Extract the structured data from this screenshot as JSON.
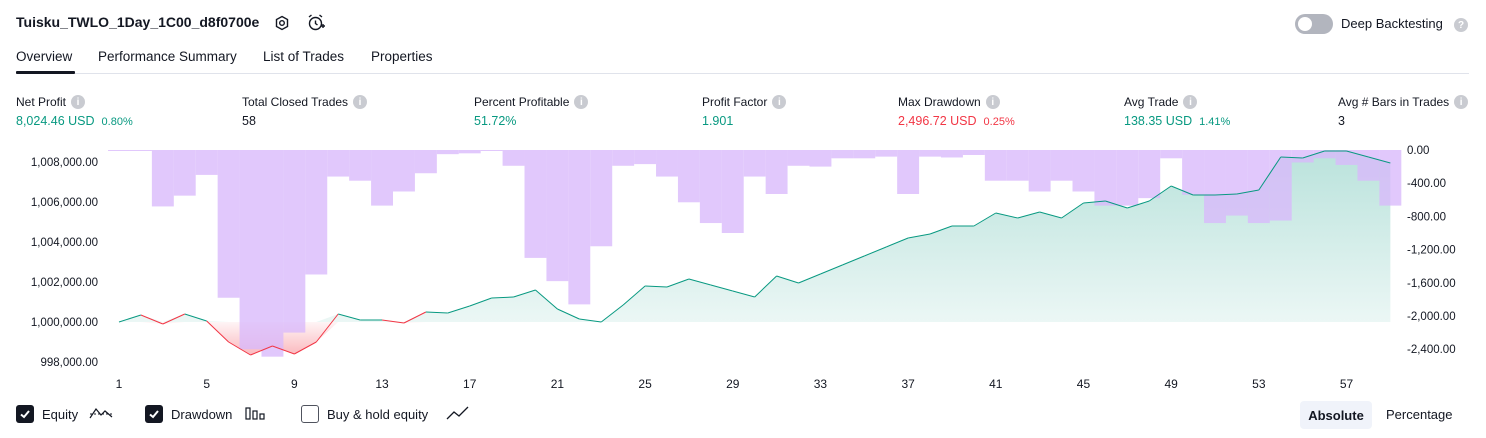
{
  "header": {
    "title": "Tuisku_TWLO_1Day_1C00_d8f0700e",
    "deep_backtesting_label": "Deep Backtesting",
    "deep_backtesting_enabled": false
  },
  "tabs": [
    {
      "label": "Overview",
      "active": true
    },
    {
      "label": "Performance Summary",
      "active": false
    },
    {
      "label": "List of Trades",
      "active": false
    },
    {
      "label": "Properties",
      "active": false
    }
  ],
  "metrics": {
    "net_profit": {
      "label": "Net Profit",
      "value": "8,024.46 USD",
      "pct": "0.80%"
    },
    "total_closed_trades": {
      "label": "Total Closed Trades",
      "value": "58"
    },
    "percent_profitable": {
      "label": "Percent Profitable",
      "value": "51.72%"
    },
    "profit_factor": {
      "label": "Profit Factor",
      "value": "1.901"
    },
    "max_drawdown": {
      "label": "Max Drawdown",
      "value": "2,496.72 USD",
      "pct": "0.25%"
    },
    "avg_trade": {
      "label": "Avg Trade",
      "value": "138.35 USD",
      "pct": "1.41%"
    },
    "avg_bars": {
      "label": "Avg # Bars in Trades",
      "value": "3"
    }
  },
  "legend": {
    "equity": {
      "label": "Equity",
      "checked": true
    },
    "drawdown": {
      "label": "Drawdown",
      "checked": true
    },
    "buy_hold": {
      "label": "Buy & hold equity",
      "checked": false
    }
  },
  "view_mode": {
    "absolute_label": "Absolute",
    "percentage_label": "Percentage",
    "selected": "Absolute"
  },
  "colors": {
    "green": "#089981",
    "red": "#f23645",
    "drawdown_bar": "#e1c4fc",
    "equity_fill": "#d6f0e9"
  },
  "chart_data": {
    "type": "area",
    "x_ticks": [
      "1",
      "5",
      "9",
      "13",
      "17",
      "21",
      "25",
      "29",
      "33",
      "37",
      "41",
      "45",
      "49",
      "53",
      "57"
    ],
    "y_left_ticks": [
      "1,008,000.00",
      "1,006,000.00",
      "1,004,000.00",
      "1,002,000.00",
      "1,000,000.00",
      "998,000.00"
    ],
    "y_right_ticks": [
      "0.00",
      "-400.00",
      "-800.00",
      "-1,200.00",
      "-1,600.00",
      "-2,000.00",
      "-2,400.00"
    ],
    "y_left_range": [
      997500,
      1008600
    ],
    "y_right_range": [
      -2520,
      0
    ],
    "series": [
      {
        "name": "Equity",
        "x": [
          1,
          2,
          3,
          4,
          5,
          6,
          7,
          8,
          9,
          10,
          11,
          12,
          13,
          14,
          15,
          16,
          17,
          18,
          19,
          20,
          21,
          22,
          23,
          24,
          25,
          26,
          27,
          28,
          29,
          30,
          31,
          32,
          33,
          34,
          35,
          36,
          37,
          38,
          39,
          40,
          41,
          42,
          43,
          44,
          45,
          46,
          47,
          48,
          49,
          50,
          51,
          52,
          53,
          54,
          55,
          56,
          57,
          58,
          59
        ],
        "values": [
          1000000,
          1000350,
          999900,
          1000400,
          1000050,
          999000,
          998350,
          998800,
          998400,
          999000,
          1000400,
          1000100,
          1000100,
          999950,
          1000500,
          1000450,
          1000800,
          1001200,
          1001250,
          1001600,
          1000650,
          1000150,
          1000000,
          1000850,
          1001800,
          1001750,
          1002150,
          1001850,
          1001550,
          1001250,
          1002300,
          1001950,
          1002400,
          1002850,
          1003300,
          1003750,
          1004200,
          1004400,
          1004800,
          1004800,
          1005450,
          1005200,
          1005500,
          1005200,
          1005950,
          1006050,
          1005700,
          1006050,
          1006800,
          1006350,
          1006350,
          1006400,
          1006600,
          1008250,
          1008200,
          1008550,
          1008550,
          1008250,
          1007950
        ]
      },
      {
        "name": "Drawdown",
        "x": [
          1,
          2,
          3,
          4,
          5,
          6,
          7,
          8,
          9,
          10,
          11,
          12,
          13,
          14,
          15,
          16,
          17,
          18,
          19,
          20,
          21,
          22,
          23,
          24,
          25,
          26,
          27,
          28,
          29,
          30,
          31,
          32,
          33,
          34,
          35,
          36,
          37,
          38,
          39,
          40,
          41,
          42,
          43,
          44,
          45,
          46,
          47,
          48,
          49,
          50,
          51,
          52,
          53,
          54,
          55,
          56,
          57,
          58,
          59
        ],
        "values": [
          -5,
          -5,
          -680,
          -550,
          -300,
          -1780,
          -2400,
          -2490,
          -2200,
          -1500,
          -320,
          -370,
          -670,
          -500,
          -280,
          -50,
          -40,
          -5,
          -190,
          -1300,
          -1580,
          -1860,
          -1160,
          -190,
          -170,
          -320,
          -630,
          -880,
          -1000,
          -320,
          -530,
          -190,
          -200,
          -100,
          -100,
          -80,
          -530,
          -80,
          -90,
          -60,
          -370,
          -370,
          -500,
          -370,
          -500,
          -670,
          -670,
          -580,
          -100,
          -540,
          -880,
          -790,
          -880,
          -850,
          -150,
          -100,
          -180,
          -370,
          -670
        ]
      }
    ]
  }
}
